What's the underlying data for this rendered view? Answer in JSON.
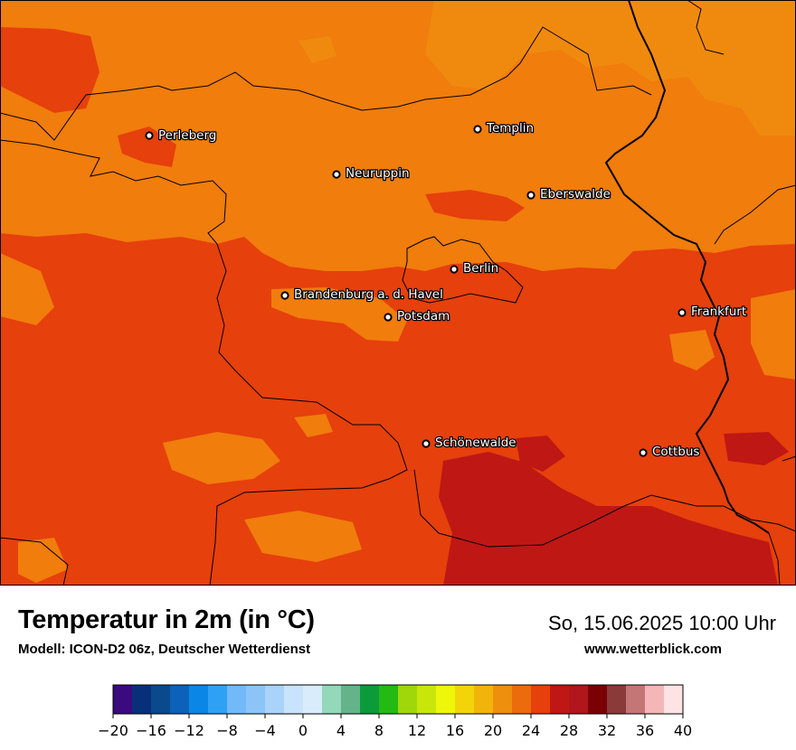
{
  "map": {
    "background_color": "#f07d0c",
    "colors": {
      "c20_22": "#f08a0e",
      "c22_24": "#f07d0c",
      "c24_26": "#e6400c",
      "c26_28": "#bf1714",
      "c28_30": "#ee8c17"
    },
    "cities": [
      {
        "name": "Perleberg"
      },
      {
        "name": "Templin"
      },
      {
        "name": "Neuruppin"
      },
      {
        "name": "Eberswalde"
      },
      {
        "name": "Berlin"
      },
      {
        "name": "Brandenburg a. d. Havel"
      },
      {
        "name": "Potsdam"
      },
      {
        "name": "Frankfurt"
      },
      {
        "name": "Schönewalde"
      },
      {
        "name": "Cottbus"
      }
    ]
  },
  "header": {
    "title": "Temperatur in 2m (in °C)",
    "subtitle": "Modell: ICON-D2 06z, Deutscher Wetterdienst",
    "datetime": "So, 15.06.2025 10:00 Uhr",
    "website": "www.wetterblick.com"
  },
  "legend": {
    "min": -20,
    "max": 40,
    "step": 2,
    "colors": [
      "#3b0a7e",
      "#08307a",
      "#0a4a8c",
      "#0b62b8",
      "#0a86e6",
      "#2fa1f5",
      "#73b9f7",
      "#8dc4f7",
      "#a9d3f8",
      "#c8e3fb",
      "#d9ecfc",
      "#93d8b9",
      "#65b38a",
      "#0c9b3a",
      "#23ba14",
      "#9fd70a",
      "#c9e60a",
      "#eef60a",
      "#f3d40b",
      "#f2b40b",
      "#ef8f0e",
      "#ec6b0d",
      "#e6400c",
      "#bf1714",
      "#b0161b",
      "#7a0006",
      "#8b3a3a",
      "#c47676",
      "#f4b6b6",
      "#fde3e3"
    ],
    "tick_labels": [
      "−20",
      "−16",
      "−12",
      "−8",
      "−4",
      "0",
      "4",
      "8",
      "12",
      "16",
      "20",
      "24",
      "28",
      "32",
      "36",
      "40"
    ],
    "tick_values": [
      -20,
      -16,
      -12,
      -8,
      -4,
      0,
      4,
      8,
      12,
      16,
      20,
      24,
      28,
      32,
      36,
      40
    ]
  }
}
